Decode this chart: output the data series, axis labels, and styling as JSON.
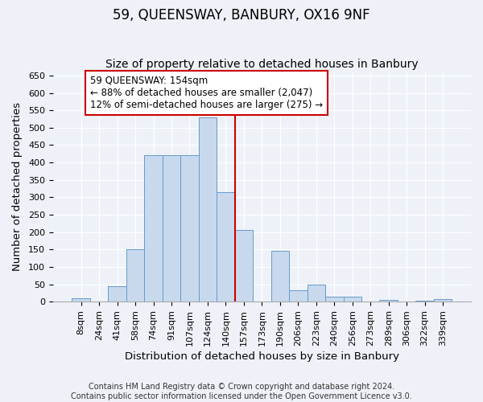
{
  "title": "59, QUEENSWAY, BANBURY, OX16 9NF",
  "subtitle": "Size of property relative to detached houses in Banbury",
  "xlabel": "Distribution of detached houses by size in Banbury",
  "ylabel": "Number of detached properties",
  "bar_labels": [
    "8sqm",
    "24sqm",
    "41sqm",
    "58sqm",
    "74sqm",
    "91sqm",
    "107sqm",
    "124sqm",
    "140sqm",
    "157sqm",
    "173sqm",
    "190sqm",
    "206sqm",
    "223sqm",
    "240sqm",
    "256sqm",
    "273sqm",
    "289sqm",
    "306sqm",
    "322sqm",
    "339sqm"
  ],
  "bar_values": [
    10,
    0,
    44,
    150,
    420,
    420,
    420,
    530,
    315,
    205,
    0,
    145,
    33,
    48,
    15,
    15,
    0,
    5,
    0,
    3,
    7
  ],
  "bar_color": "#c8d9ed",
  "bar_edge_color": "#6699cc",
  "ylim": [
    0,
    660
  ],
  "yticks": [
    0,
    50,
    100,
    150,
    200,
    250,
    300,
    350,
    400,
    450,
    500,
    550,
    600,
    650
  ],
  "vline_color": "#cc0000",
  "vline_pos": 9,
  "annotation_title": "59 QUEENSWAY: 154sqm",
  "annotation_line1": "← 88% of detached houses are smaller (2,047)",
  "annotation_line2": "12% of semi-detached houses are larger (275) →",
  "annotation_box_color": "#ffffff",
  "annotation_box_edge": "#cc0000",
  "footer1": "Contains HM Land Registry data © Crown copyright and database right 2024.",
  "footer2": "Contains public sector information licensed under the Open Government Licence v3.0.",
  "background_color": "#eef2f8",
  "grid_color": "#ffffff",
  "title_fontsize": 12,
  "subtitle_fontsize": 10,
  "axis_label_fontsize": 9.5,
  "tick_fontsize": 8,
  "annotation_fontsize": 8.5,
  "footer_fontsize": 7
}
